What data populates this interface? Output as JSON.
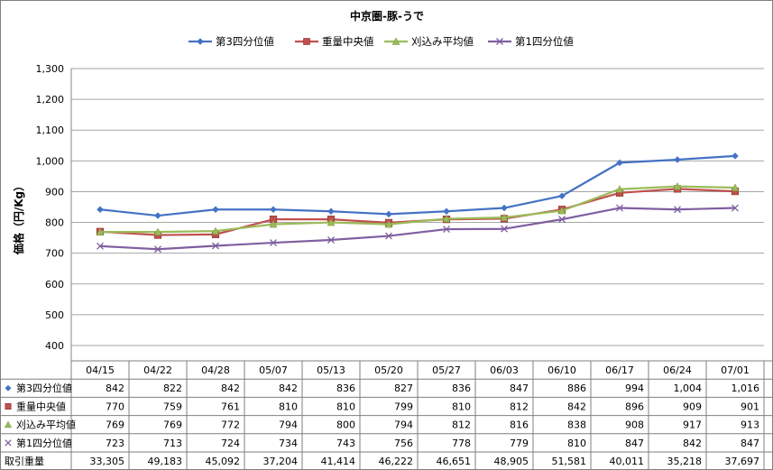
{
  "chart_data": {
    "type": "line",
    "title": "中京圏-豚-うで",
    "ylabel": "価格（円/Kg）",
    "xlabel": "",
    "ylim": [
      400,
      1300
    ],
    "yticks": [
      "400",
      "500",
      "600",
      "700",
      "800",
      "900",
      "1,000",
      "1,100",
      "1,200",
      "1,300"
    ],
    "grid": true,
    "legend_position": "top",
    "categories": [
      "04/15",
      "04/22",
      "04/28",
      "05/07",
      "05/13",
      "05/20",
      "05/27",
      "06/03",
      "06/10",
      "06/17",
      "06/24",
      "07/01"
    ],
    "series": [
      {
        "name": "第3四分位値",
        "color": "#4472c4",
        "marker": "diamond",
        "values": [
          842,
          822,
          842,
          842,
          836,
          827,
          836,
          847,
          886,
          994,
          1004,
          1016
        ],
        "labels": [
          "842",
          "822",
          "842",
          "842",
          "836",
          "827",
          "836",
          "847",
          "886",
          "994",
          "1,004",
          "1,016"
        ]
      },
      {
        "name": "重量中央値",
        "color": "#c0504d",
        "marker": "square",
        "values": [
          770,
          759,
          761,
          810,
          810,
          799,
          810,
          812,
          842,
          896,
          909,
          901
        ],
        "labels": [
          "770",
          "759",
          "761",
          "810",
          "810",
          "799",
          "810",
          "812",
          "842",
          "896",
          "909",
          "901"
        ]
      },
      {
        "name": "刈込み平均値",
        "color": "#9bbb59",
        "marker": "triangle",
        "values": [
          769,
          769,
          772,
          794,
          800,
          794,
          812,
          816,
          838,
          908,
          917,
          913
        ],
        "labels": [
          "769",
          "769",
          "772",
          "794",
          "800",
          "794",
          "812",
          "816",
          "838",
          "908",
          "917",
          "913"
        ]
      },
      {
        "name": "第1四分位値",
        "color": "#7f5fa0",
        "marker": "x",
        "values": [
          723,
          713,
          724,
          734,
          743,
          756,
          778,
          779,
          810,
          847,
          842,
          847
        ],
        "labels": [
          "723",
          "713",
          "724",
          "734",
          "743",
          "756",
          "778",
          "779",
          "810",
          "847",
          "842",
          "847"
        ]
      }
    ],
    "table_extra_rows": [
      {
        "name": "取引重量",
        "labels": [
          "33,305",
          "49,183",
          "45,092",
          "37,204",
          "41,414",
          "46,222",
          "46,651",
          "48,905",
          "51,581",
          "40,011",
          "35,218",
          "37,697"
        ]
      }
    ]
  }
}
